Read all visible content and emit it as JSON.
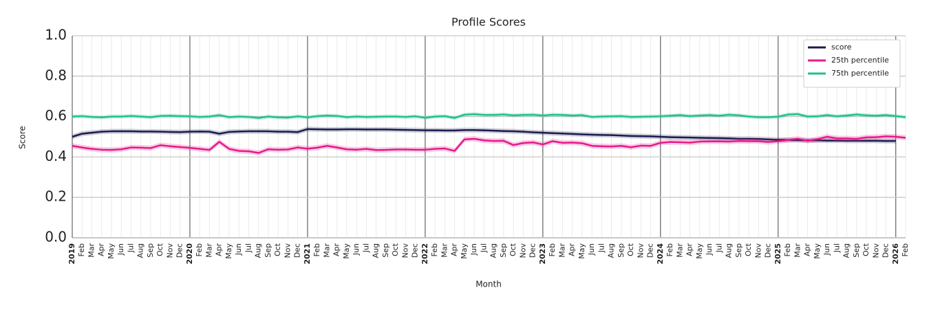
{
  "chart_data": {
    "type": "line",
    "title": "Profile Scores",
    "x_label": "Month",
    "y_label": "Score",
    "categories": [
      "2019",
      "Feb",
      "Mar",
      "Apr",
      "May",
      "Jun",
      "Jul",
      "Aug",
      "Sep",
      "Oct",
      "Nov",
      "Dec",
      "2020",
      "Feb",
      "Mar",
      "Apr",
      "May",
      "Jun",
      "Jul",
      "Aug",
      "Sep",
      "Oct",
      "Nov",
      "Dec",
      "2021",
      "Feb",
      "Mar",
      "Apr",
      "May",
      "Jun",
      "Jul",
      "Aug",
      "Sep",
      "Oct",
      "Nov",
      "Dec",
      "2022",
      "Feb",
      "Mar",
      "Apr",
      "May",
      "Jun",
      "Jul",
      "Aug",
      "Sep",
      "Oct",
      "Nov",
      "Dec",
      "2023",
      "Feb",
      "Mar",
      "Apr",
      "May",
      "Jun",
      "Jul",
      "Aug",
      "Sep",
      "Oct",
      "Nov",
      "Dec",
      "2024",
      "Feb",
      "Mar",
      "Apr",
      "May",
      "Jun",
      "Jul",
      "Aug",
      "Sep",
      "Oct",
      "Nov",
      "Dec",
      "2025",
      "Feb",
      "Mar",
      "Apr",
      "May",
      "Jun",
      "Jul",
      "Aug",
      "Sep",
      "Oct",
      "Nov",
      "Dec",
      "2026",
      "Feb"
    ],
    "series": [
      {
        "name": "score",
        "color": "#1a1a4e",
        "error": 0.012,
        "values": [
          0.5,
          0.515,
          0.52,
          0.525,
          0.527,
          0.527,
          0.527,
          0.526,
          0.526,
          0.525,
          0.524,
          0.523,
          0.525,
          0.526,
          0.525,
          0.515,
          0.524,
          0.526,
          0.527,
          0.527,
          0.527,
          0.525,
          0.525,
          0.523,
          0.538,
          0.537,
          0.536,
          0.536,
          0.537,
          0.537,
          0.536,
          0.536,
          0.536,
          0.535,
          0.534,
          0.533,
          0.532,
          0.532,
          0.531,
          0.531,
          0.533,
          0.533,
          0.532,
          0.53,
          0.528,
          0.527,
          0.525,
          0.522,
          0.52,
          0.518,
          0.516,
          0.514,
          0.512,
          0.51,
          0.509,
          0.508,
          0.506,
          0.504,
          0.503,
          0.502,
          0.5,
          0.498,
          0.497,
          0.496,
          0.495,
          0.494,
          0.493,
          0.492,
          0.49,
          0.49,
          0.489,
          0.487,
          0.485,
          0.484,
          0.483,
          0.482,
          0.482,
          0.481,
          0.481,
          0.48,
          0.48,
          0.48,
          0.48,
          0.479,
          0.479,
          null
        ]
      },
      {
        "name": "25th percentile",
        "color": "#e6198a",
        "error": 0.013,
        "values": [
          0.455,
          0.447,
          0.44,
          0.436,
          0.435,
          0.438,
          0.447,
          0.446,
          0.444,
          0.458,
          0.453,
          0.449,
          0.445,
          0.44,
          0.435,
          0.475,
          0.44,
          0.43,
          0.428,
          0.42,
          0.438,
          0.436,
          0.437,
          0.447,
          0.441,
          0.446,
          0.455,
          0.447,
          0.438,
          0.436,
          0.44,
          0.434,
          0.435,
          0.437,
          0.437,
          0.436,
          0.436,
          0.44,
          0.442,
          0.43,
          0.487,
          0.49,
          0.482,
          0.479,
          0.48,
          0.459,
          0.469,
          0.472,
          0.462,
          0.478,
          0.47,
          0.471,
          0.468,
          0.455,
          0.453,
          0.452,
          0.455,
          0.448,
          0.456,
          0.455,
          0.47,
          0.474,
          0.473,
          0.471,
          0.476,
          0.477,
          0.477,
          0.476,
          0.479,
          0.478,
          0.478,
          0.474,
          0.478,
          0.484,
          0.49,
          0.48,
          0.488,
          0.5,
          0.492,
          0.492,
          0.49,
          0.497,
          0.498,
          0.502,
          0.5,
          0.495
        ]
      },
      {
        "name": "75th percentile",
        "color": "#22c08a",
        "error": 0.01,
        "values": [
          0.6,
          0.602,
          0.598,
          0.596,
          0.6,
          0.6,
          0.603,
          0.6,
          0.597,
          0.603,
          0.604,
          0.602,
          0.601,
          0.598,
          0.6,
          0.607,
          0.597,
          0.6,
          0.598,
          0.593,
          0.6,
          0.596,
          0.595,
          0.601,
          0.596,
          0.602,
          0.605,
          0.603,
          0.597,
          0.6,
          0.598,
          0.599,
          0.6,
          0.6,
          0.598,
          0.601,
          0.594,
          0.6,
          0.602,
          0.593,
          0.609,
          0.612,
          0.608,
          0.608,
          0.61,
          0.606,
          0.608,
          0.609,
          0.605,
          0.609,
          0.608,
          0.605,
          0.607,
          0.598,
          0.6,
          0.601,
          0.602,
          0.598,
          0.599,
          0.6,
          0.601,
          0.604,
          0.607,
          0.602,
          0.605,
          0.607,
          0.604,
          0.609,
          0.606,
          0.6,
          0.597,
          0.597,
          0.599,
          0.61,
          0.612,
          0.6,
          0.601,
          0.607,
          0.601,
          0.605,
          0.61,
          0.606,
          0.604,
          0.607,
          0.602,
          0.597
        ]
      }
    ],
    "ylim": [
      0,
      1
    ],
    "yticks": [
      {
        "value": 0,
        "label": "0.0"
      },
      {
        "value": 0.2,
        "label": "0.2"
      },
      {
        "value": 0.4,
        "label": "0.4"
      },
      {
        "value": 0.6,
        "label": "0.6"
      },
      {
        "value": 0.8,
        "label": "0.8"
      },
      {
        "value": 1,
        "label": "1.0"
      }
    ],
    "grid": true,
    "legend": "upper right"
  }
}
